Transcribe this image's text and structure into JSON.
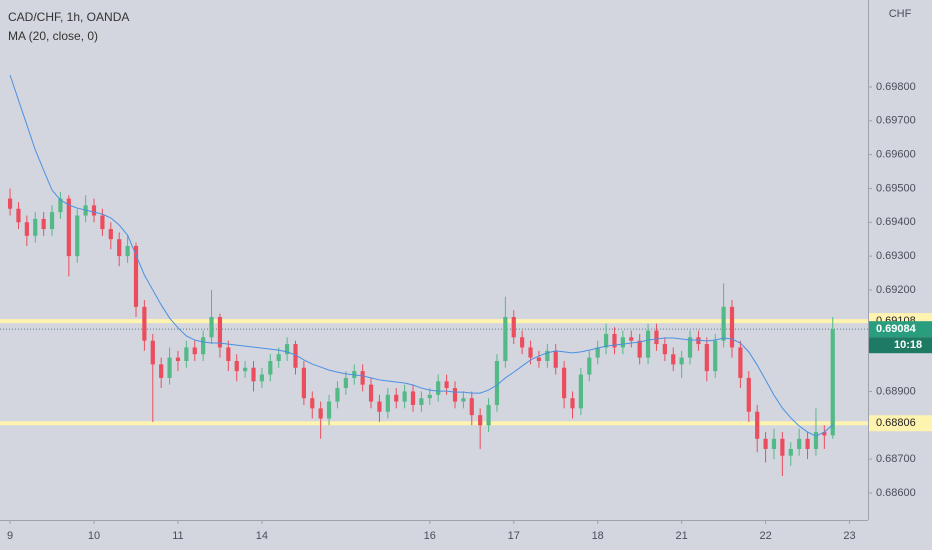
{
  "chart_data": {
    "type": "candlestick",
    "title": "CAD/CHF, 1h, OANDA",
    "currency": "CHF",
    "countdown": "10:18",
    "up_color": "#53b987",
    "down_color": "#eb4d5c",
    "xlim": [
      -1.2,
      102.2
    ],
    "xticks": [
      {
        "value": 0,
        "label": "9"
      },
      {
        "value": 10,
        "label": "10"
      },
      {
        "value": 20,
        "label": "11"
      },
      {
        "value": 30,
        "label": "14"
      },
      {
        "value": 50,
        "label": "16"
      },
      {
        "value": 60,
        "label": "17"
      },
      {
        "value": 70,
        "label": "18"
      },
      {
        "value": 80,
        "label": "21"
      },
      {
        "value": 90,
        "label": "22"
      },
      {
        "value": 100,
        "label": "23"
      }
    ],
    "ylim": [
      0.6852,
      0.70057
    ],
    "yticks": [
      {
        "value": 0.698,
        "label": "0.69800"
      },
      {
        "value": 0.697,
        "label": "0.69700"
      },
      {
        "value": 0.696,
        "label": "0.69600"
      },
      {
        "value": 0.695,
        "label": "0.69500"
      },
      {
        "value": 0.694,
        "label": "0.69400"
      },
      {
        "value": 0.693,
        "label": "0.69300"
      },
      {
        "value": 0.692,
        "label": "0.69200"
      },
      {
        "value": 0.689,
        "label": "0.68900"
      },
      {
        "value": 0.687,
        "label": "0.68700"
      },
      {
        "value": 0.686,
        "label": "0.68600"
      }
    ],
    "hlines": [
      0.69108,
      0.68806
    ],
    "hline_color": "#fff3b0",
    "open": [
      0.6947,
      0.6944,
      0.694,
      0.6936,
      0.6941,
      0.6938,
      0.6943,
      0.6947,
      0.693,
      0.6942,
      0.6945,
      0.6942,
      0.6938,
      0.6935,
      0.693,
      0.6933,
      0.6915,
      0.6905,
      0.6898,
      0.6894,
      0.69,
      0.6899,
      0.6903,
      0.6901,
      0.6906,
      0.6912,
      0.6903,
      0.6899,
      0.6896,
      0.6897,
      0.6893,
      0.6895,
      0.6899,
      0.6901,
      0.6904,
      0.6897,
      0.6888,
      0.6885,
      0.6882,
      0.6887,
      0.6891,
      0.6894,
      0.6896,
      0.6892,
      0.6887,
      0.6884,
      0.6889,
      0.6887,
      0.689,
      0.6886,
      0.6888,
      0.6889,
      0.6893,
      0.6891,
      0.6887,
      0.6888,
      0.6883,
      0.688,
      0.6886,
      0.6899,
      0.6912,
      0.6906,
      0.6903,
      0.69,
      0.6899,
      0.6902,
      0.6897,
      0.6888,
      0.6885,
      0.6895,
      0.69,
      0.6903,
      0.6907,
      0.6903,
      0.6906,
      0.6905,
      0.69,
      0.6908,
      0.6904,
      0.6901,
      0.6898,
      0.69,
      0.6906,
      0.6904,
      0.6896,
      0.6905,
      0.6915,
      0.6903,
      0.6894,
      0.6884,
      0.6876,
      0.6873,
      0.6876,
      0.6871,
      0.6873,
      0.6876,
      0.6873,
      0.6878,
      0.6877
    ],
    "high": [
      0.695,
      0.6946,
      0.6942,
      0.6943,
      0.6943,
      0.6945,
      0.6949,
      0.6948,
      0.6944,
      0.6948,
      0.6947,
      0.6944,
      0.694,
      0.6937,
      0.6936,
      0.6934,
      0.6917,
      0.6907,
      0.69,
      0.6903,
      0.6902,
      0.6905,
      0.6905,
      0.6908,
      0.692,
      0.6913,
      0.6905,
      0.6901,
      0.6899,
      0.6899,
      0.6897,
      0.6901,
      0.6903,
      0.6906,
      0.6905,
      0.6899,
      0.689,
      0.6887,
      0.6889,
      0.6893,
      0.6896,
      0.6898,
      0.6898,
      0.6894,
      0.6889,
      0.6891,
      0.6891,
      0.6892,
      0.6892,
      0.689,
      0.6891,
      0.6895,
      0.6895,
      0.6893,
      0.689,
      0.689,
      0.6885,
      0.6888,
      0.6901,
      0.6918,
      0.6914,
      0.6908,
      0.6905,
      0.6902,
      0.6904,
      0.6904,
      0.6899,
      0.689,
      0.6897,
      0.6902,
      0.6905,
      0.691,
      0.6909,
      0.6908,
      0.6908,
      0.6907,
      0.691,
      0.691,
      0.6906,
      0.6903,
      0.6902,
      0.6908,
      0.6908,
      0.6906,
      0.6907,
      0.6922,
      0.6917,
      0.6905,
      0.6896,
      0.6886,
      0.6878,
      0.6879,
      0.6878,
      0.6875,
      0.6879,
      0.6878,
      0.6885,
      0.688,
      0.6912
    ],
    "low": [
      0.6942,
      0.6938,
      0.6933,
      0.6934,
      0.6936,
      0.6936,
      0.6941,
      0.6924,
      0.6928,
      0.694,
      0.694,
      0.6936,
      0.6932,
      0.6927,
      0.6928,
      0.6912,
      0.6902,
      0.6881,
      0.6891,
      0.6892,
      0.6896,
      0.6897,
      0.6899,
      0.6899,
      0.6904,
      0.69,
      0.6896,
      0.6893,
      0.6894,
      0.689,
      0.6891,
      0.6893,
      0.6897,
      0.6899,
      0.6895,
      0.6886,
      0.6882,
      0.6876,
      0.688,
      0.6885,
      0.6889,
      0.6892,
      0.689,
      0.6885,
      0.6881,
      0.6882,
      0.6885,
      0.6885,
      0.6884,
      0.6884,
      0.6886,
      0.6887,
      0.6889,
      0.6885,
      0.6885,
      0.688,
      0.6873,
      0.6878,
      0.6884,
      0.6897,
      0.6904,
      0.6901,
      0.6898,
      0.6897,
      0.6897,
      0.6895,
      0.6885,
      0.6882,
      0.6883,
      0.6893,
      0.6898,
      0.6901,
      0.6901,
      0.6901,
      0.6903,
      0.6898,
      0.6898,
      0.6902,
      0.6899,
      0.6896,
      0.6894,
      0.6898,
      0.6902,
      0.6893,
      0.6894,
      0.6903,
      0.69,
      0.6891,
      0.6881,
      0.6872,
      0.6869,
      0.687,
      0.6865,
      0.6868,
      0.6871,
      0.687,
      0.6871,
      0.6873,
      0.6876
    ],
    "close": [
      0.6944,
      0.694,
      0.6936,
      0.6941,
      0.6938,
      0.6943,
      0.6947,
      0.693,
      0.6942,
      0.6945,
      0.6942,
      0.6938,
      0.6935,
      0.693,
      0.6933,
      0.6915,
      0.6905,
      0.6898,
      0.6894,
      0.69,
      0.6899,
      0.6903,
      0.6901,
      0.6906,
      0.6912,
      0.6903,
      0.6899,
      0.6896,
      0.6897,
      0.6893,
      0.6895,
      0.6899,
      0.6901,
      0.6904,
      0.6897,
      0.6888,
      0.6885,
      0.6882,
      0.6887,
      0.6891,
      0.6894,
      0.6896,
      0.6892,
      0.6887,
      0.6884,
      0.6889,
      0.6887,
      0.689,
      0.6886,
      0.6888,
      0.6889,
      0.6893,
      0.6891,
      0.6887,
      0.6888,
      0.6883,
      0.688,
      0.6886,
      0.6899,
      0.6912,
      0.6906,
      0.6903,
      0.69,
      0.6899,
      0.6902,
      0.6897,
      0.6888,
      0.6885,
      0.6895,
      0.69,
      0.6903,
      0.6907,
      0.6903,
      0.6906,
      0.6905,
      0.69,
      0.6908,
      0.6904,
      0.6901,
      0.6898,
      0.69,
      0.6906,
      0.6904,
      0.6896,
      0.6905,
      0.6915,
      0.6903,
      0.6894,
      0.6884,
      0.6876,
      0.6873,
      0.6876,
      0.6871,
      0.6873,
      0.6876,
      0.6873,
      0.6878,
      0.6877,
      0.69084
    ],
    "ma": {
      "name": "MA (20, close, 0)",
      "color": "#4a90e2",
      "values": [
        0.69835,
        0.69761,
        0.69688,
        0.69614,
        0.69554,
        0.69495,
        0.69466,
        0.69451,
        0.69442,
        0.69436,
        0.6943,
        0.69424,
        0.69413,
        0.69392,
        0.69362,
        0.69303,
        0.69244,
        0.692,
        0.69156,
        0.69117,
        0.69088,
        0.69064,
        0.69052,
        0.69046,
        0.69043,
        0.69043,
        0.6904,
        0.69037,
        0.69034,
        0.69031,
        0.69028,
        0.69025,
        0.69022,
        0.69017,
        0.69008,
        0.68993,
        0.68981,
        0.68972,
        0.68963,
        0.68957,
        0.68952,
        0.68949,
        0.68946,
        0.6894,
        0.68934,
        0.68931,
        0.68928,
        0.68925,
        0.68919,
        0.6891,
        0.68904,
        0.68901,
        0.68901,
        0.68898,
        0.68898,
        0.68895,
        0.68895,
        0.68904,
        0.68919,
        0.6894,
        0.68957,
        0.68975,
        0.68993,
        0.69005,
        0.69014,
        0.6902,
        0.69017,
        0.69014,
        0.69017,
        0.69022,
        0.69028,
        0.69034,
        0.69037,
        0.6904,
        0.69043,
        0.69046,
        0.69052,
        0.69055,
        0.69058,
        0.69058,
        0.69055,
        0.69052,
        0.69052,
        0.69049,
        0.69052,
        0.69058,
        0.69055,
        0.69043,
        0.69017,
        0.68978,
        0.68934,
        0.68889,
        0.68851,
        0.68822,
        0.68798,
        0.6878,
        0.68768,
        0.6878,
        0.68801
      ]
    }
  }
}
